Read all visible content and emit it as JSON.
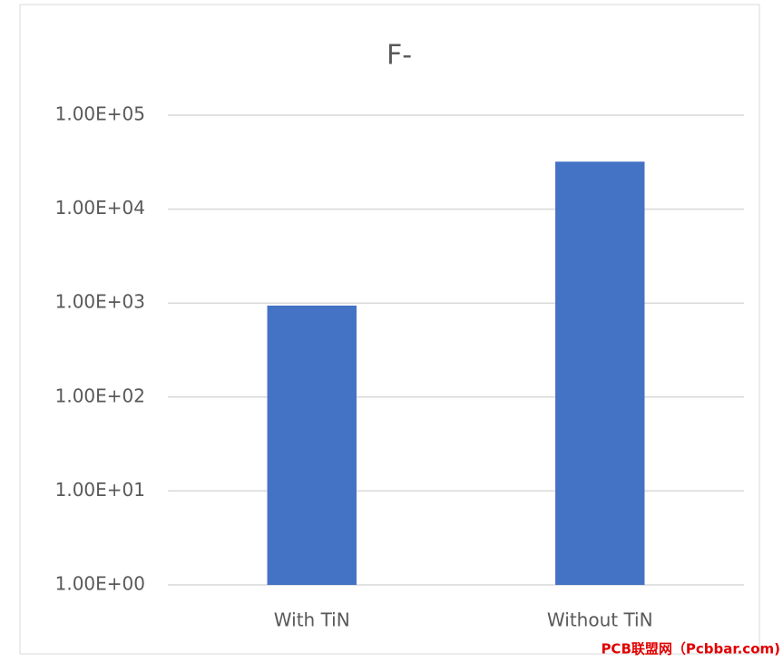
{
  "chart_data": {
    "type": "bar",
    "title": "F-",
    "categories": [
      "With TiN",
      "Without TiN"
    ],
    "values": [
      940,
      32000
    ],
    "color": "#4472c4",
    "log_scale": true,
    "grid": true,
    "ylim": [
      1,
      100000
    ],
    "yticks": [
      {
        "value": 1,
        "label": "1.00E+00"
      },
      {
        "value": 10,
        "label": "1.00E+01"
      },
      {
        "value": 100,
        "label": "1.00E+02"
      },
      {
        "value": 1000,
        "label": "1.00E+03"
      },
      {
        "value": 10000,
        "label": "1.00E+04"
      },
      {
        "value": 100000,
        "label": "1.00E+05"
      }
    ],
    "watermark": "PCB联盟网（Pcbbar.com)"
  }
}
